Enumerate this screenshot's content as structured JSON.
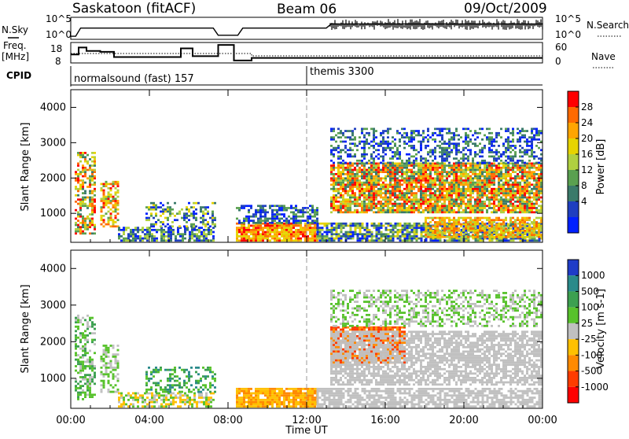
{
  "header": {
    "station": "Saskatoon (fitACF)",
    "beam": "Beam 06",
    "date": "09/Oct/2009"
  },
  "noise_panel": {
    "left_label": "N.Sky",
    "right_label": "N.Search",
    "tick_top": "10^5",
    "tick_bottom": "10^0"
  },
  "freq_panel": {
    "left_label_1": "Freq.",
    "left_label_2": "[MHz]",
    "right_label": "Nave",
    "left_ticks": [
      "18",
      "8"
    ],
    "right_ticks": [
      "60",
      "0"
    ]
  },
  "cpid_panel": {
    "label": "CPID",
    "modes": [
      {
        "name": "normalsound (fast) 157",
        "start_hour": 0
      },
      {
        "name": "themis 3300",
        "start_hour": 12
      }
    ]
  },
  "chart_data": [
    {
      "type": "heatmap",
      "parameter": "Power",
      "colorbar_label": "Power [dB]",
      "ylabel": "Slant Range [km]",
      "ylim": [
        180,
        4500
      ],
      "y_ticks": [
        1000,
        2000,
        3000,
        4000
      ],
      "x_ticks": [
        0,
        4,
        8,
        12,
        16,
        20,
        24
      ],
      "colorbar_ticks": [
        "28",
        "24",
        "20",
        "16",
        "12",
        "8",
        "4"
      ],
      "colorbar_colors": [
        "#ff0000",
        "#ff6a00",
        "#ffa500",
        "#e6d300",
        "#b0d040",
        "#5aa050",
        "#3a7a6a",
        "#1f3fc0",
        "#0020ff"
      ]
    },
    {
      "type": "heatmap",
      "parameter": "Velocity",
      "colorbar_label": "Velocity [m s-1]",
      "ylabel": "Slant Range [km]",
      "ylim": [
        180,
        4500
      ],
      "y_ticks": [
        1000,
        2000,
        3000,
        4000
      ],
      "x_ticks": [
        0,
        4,
        8,
        12,
        16,
        20,
        24
      ],
      "colorbar_ticks": [
        "1000",
        "500",
        "100",
        "25",
        "-25",
        "-100",
        "-500",
        "-1000"
      ],
      "colorbar_colors": [
        "#1f3cc8",
        "#2a8a8a",
        "#3ca050",
        "#58c22c",
        "#c0c0c0",
        "#ffc000",
        "#ff8a00",
        "#ff3c00",
        "#ff0000"
      ]
    }
  ],
  "xaxis": {
    "title": "Time UT",
    "tick_labels": [
      "00:00",
      "04:00",
      "08:00",
      "12:00",
      "16:00",
      "20:00",
      "00:00"
    ]
  }
}
